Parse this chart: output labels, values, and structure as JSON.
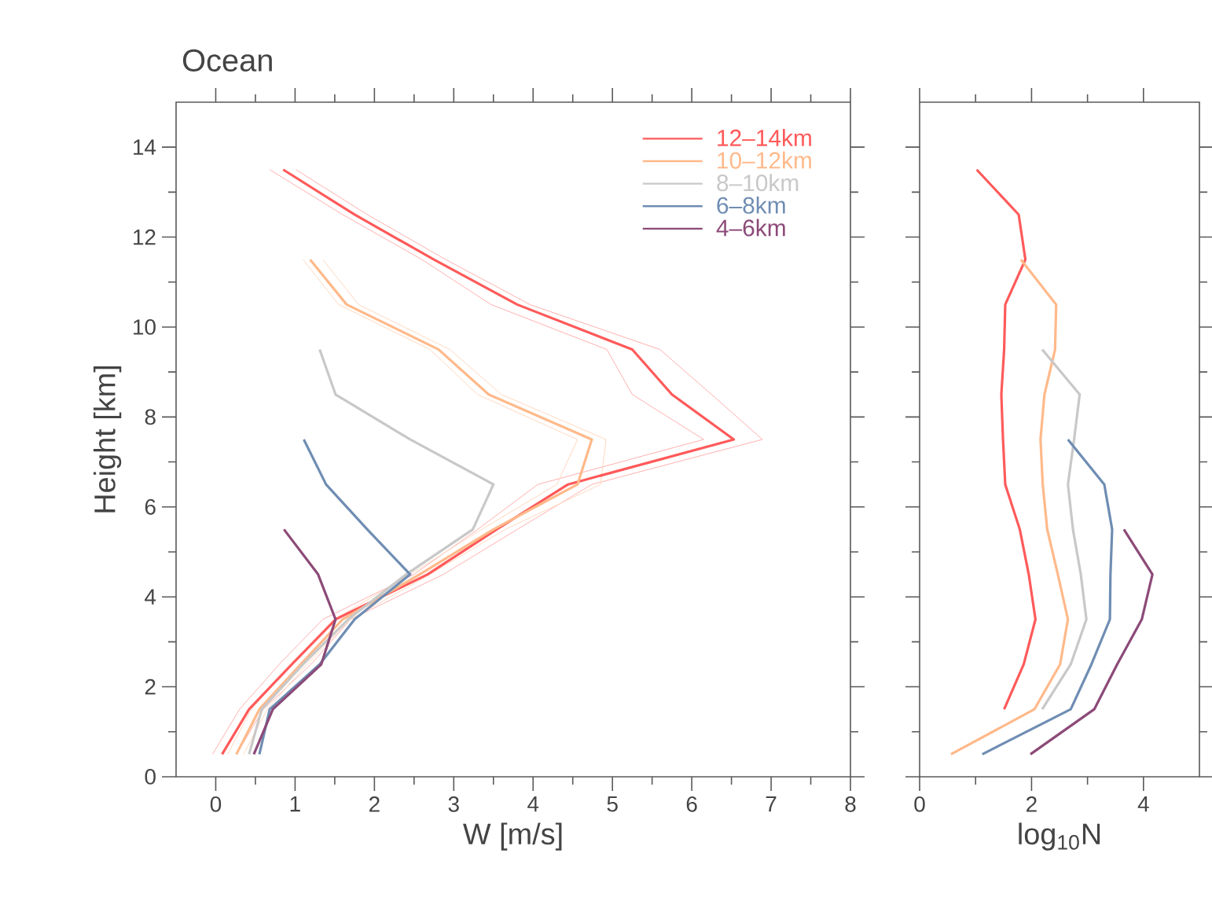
{
  "chart_data": [
    {
      "type": "line",
      "title": "Ocean",
      "xlabel": "W [m/s]",
      "ylabel": "Height [km]",
      "xlim": [
        -0.5,
        8
      ],
      "xticks": [
        0,
        1,
        2,
        3,
        4,
        5,
        6,
        7,
        8
      ],
      "ylim": [
        0,
        15
      ],
      "yticks": [
        0,
        2,
        4,
        6,
        8,
        10,
        12,
        14
      ],
      "legend": "top right",
      "series": [
        {
          "color": "#ffb0b0",
          "x": [
            0.26,
            0.6,
            1.2,
            1.7,
            2.87,
            3.8,
            4.74,
            6.89,
            6.25,
            5.6,
            3.96,
            2.9,
            1.91,
            1.01
          ],
          "values": [
            0.5,
            1.5,
            2.5,
            3.5,
            4.5,
            5.5,
            6.5,
            7.5,
            8.5,
            9.5,
            10.5,
            11.5,
            12.5,
            13.5
          ]
        },
        {
          "color": "#ffb0b0",
          "x": [
            -0.04,
            0.3,
            0.8,
            1.35,
            2.5,
            3.3,
            4.06,
            6.15,
            5.25,
            4.93,
            3.47,
            2.6,
            1.6,
            0.68
          ],
          "values": [
            0.5,
            1.5,
            2.5,
            3.5,
            4.5,
            5.5,
            6.5,
            7.5,
            8.5,
            9.5,
            10.5,
            11.5,
            12.5,
            13.5
          ]
        },
        {
          "color": "#ffd8c0",
          "x": [
            0.35,
            0.65,
            1.15,
            1.7,
            2.7,
            3.65,
            4.85,
            4.92,
            3.6,
            2.95,
            1.8,
            1.35
          ],
          "values": [
            0.5,
            1.5,
            2.5,
            3.5,
            4.5,
            5.5,
            6.5,
            7.5,
            8.5,
            9.5,
            10.5,
            11.5
          ]
        },
        {
          "color": "#ffd8c0",
          "x": [
            0.15,
            0.45,
            0.95,
            1.5,
            2.45,
            3.35,
            4.3,
            4.56,
            3.3,
            2.7,
            1.55,
            1.1
          ],
          "values": [
            0.5,
            1.5,
            2.5,
            3.5,
            4.5,
            5.5,
            6.5,
            7.5,
            8.5,
            9.5,
            10.5,
            11.5
          ]
        },
        {
          "name": "12–14km",
          "color": "#ff5a5a",
          "x": [
            0.08,
            0.42,
            0.96,
            1.51,
            2.67,
            3.54,
            4.44,
            6.53,
            5.75,
            5.25,
            3.8,
            2.75,
            1.75,
            0.85
          ],
          "values": [
            0.5,
            1.5,
            2.5,
            3.5,
            4.5,
            5.5,
            6.5,
            7.5,
            8.5,
            9.5,
            10.5,
            11.5,
            12.5,
            13.5
          ]
        },
        {
          "name": "10–12km",
          "color": "#ffb98a",
          "x": [
            0.26,
            0.55,
            1.07,
            1.6,
            2.57,
            3.5,
            4.56,
            4.74,
            3.44,
            2.81,
            1.65,
            1.19
          ],
          "values": [
            0.5,
            1.5,
            2.5,
            3.5,
            4.5,
            5.5,
            6.5,
            7.5,
            8.5,
            9.5,
            10.5,
            11.5
          ]
        },
        {
          "name": "8–10km",
          "color": "#c8c8c8",
          "x": [
            0.42,
            0.58,
            1.1,
            1.67,
            2.4,
            3.24,
            3.5,
            2.45,
            1.51,
            1.31
          ],
          "values": [
            0.5,
            1.5,
            2.5,
            3.5,
            4.5,
            5.5,
            6.5,
            7.5,
            8.5,
            9.5
          ]
        },
        {
          "name": "6–8km",
          "color": "#6f8db3",
          "x": [
            0.55,
            0.68,
            1.31,
            1.75,
            2.45,
            1.91,
            1.39,
            1.11
          ],
          "values": [
            0.5,
            1.5,
            2.5,
            3.5,
            4.5,
            5.5,
            6.5,
            7.5
          ]
        },
        {
          "name": "4–6km",
          "color": "#8c4a78",
          "x": [
            0.48,
            0.72,
            1.33,
            1.51,
            1.29,
            0.86
          ],
          "values": [
            0.5,
            1.5,
            2.5,
            3.5,
            4.5,
            5.5
          ]
        }
      ]
    },
    {
      "type": "line",
      "xlabel": "log$_{10}$N",
      "xlim": [
        0,
        5
      ],
      "xticks": [
        0,
        2,
        4
      ],
      "ylim": [
        0,
        15
      ],
      "yticks": [
        0,
        2,
        4,
        6,
        8,
        10,
        12,
        14
      ],
      "tick_labels": "x",
      "series": [
        {
          "color": "#ff5a5a",
          "x": [
            1.51,
            1.86,
            2.07,
            1.95,
            1.79,
            1.53,
            1.49,
            1.46,
            1.51,
            1.53,
            1.89,
            1.77,
            1.02
          ],
          "values": [
            1.5,
            2.5,
            3.5,
            4.5,
            5.5,
            6.5,
            7.5,
            8.5,
            9.5,
            10.5,
            11.5,
            12.5,
            13.5
          ]
        },
        {
          "color": "#ffb98a",
          "x": [
            0.56,
            2.05,
            2.51,
            2.65,
            2.47,
            2.28,
            2.2,
            2.16,
            2.23,
            2.42,
            2.44,
            1.81
          ],
          "values": [
            0.5,
            1.5,
            2.5,
            3.5,
            4.5,
            5.5,
            6.5,
            7.5,
            8.5,
            9.5,
            10.5,
            11.5
          ]
        },
        {
          "color": "#c8c8c8",
          "x": [
            2.19,
            2.7,
            2.98,
            2.88,
            2.74,
            2.65,
            2.76,
            2.86,
            2.19
          ],
          "values": [
            1.5,
            2.5,
            3.5,
            4.5,
            5.5,
            6.5,
            7.5,
            8.5,
            9.5
          ]
        },
        {
          "color": "#6f8db3",
          "x": [
            1.12,
            2.7,
            3.07,
            3.4,
            3.41,
            3.44,
            3.3,
            2.65
          ],
          "values": [
            0.5,
            1.5,
            2.5,
            3.5,
            4.5,
            5.5,
            6.5,
            7.5
          ]
        },
        {
          "color": "#8c4a78",
          "x": [
            1.98,
            3.12,
            3.53,
            3.97,
            4.16,
            3.65
          ],
          "values": [
            0.5,
            1.5,
            2.5,
            3.5,
            4.5,
            5.5
          ]
        }
      ]
    }
  ]
}
